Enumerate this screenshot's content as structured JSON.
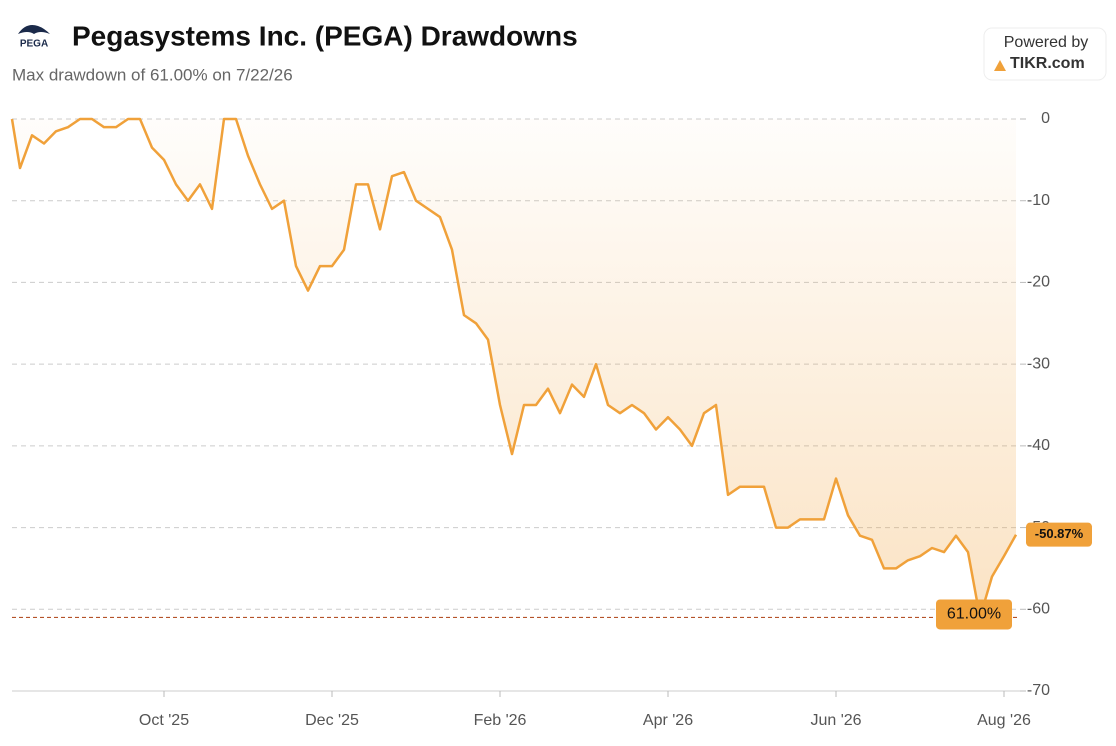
{
  "chart_data": {
    "type": "line",
    "title": "Pegasystems Inc. (PEGA) Drawdowns",
    "subtitle": "Max drawdown of 61.00% on 7/22/26",
    "logo_text": "PEGA",
    "powered_by": "Powered by",
    "brand": "TIKR.com",
    "categories": [
      null,
      null,
      null,
      null,
      null,
      null,
      null,
      null,
      null,
      null,
      null,
      null,
      null,
      "Oct '25",
      null,
      null,
      null,
      null,
      null,
      null,
      null,
      null,
      null,
      null,
      null,
      null,
      null,
      "Dec '25",
      null,
      null,
      null,
      null,
      null,
      null,
      null,
      null,
      null,
      null,
      null,
      null,
      null,
      "Feb '26",
      null,
      null,
      null,
      null,
      null,
      null,
      null,
      null,
      null,
      null,
      null,
      null,
      null,
      "Apr '26",
      null,
      null,
      null,
      null,
      null,
      null,
      null,
      null,
      null,
      null,
      null,
      null,
      null,
      "Jun '26",
      null,
      null,
      null,
      null,
      null,
      null,
      null,
      null,
      null,
      null,
      null,
      null,
      null,
      "Aug '26",
      null
    ],
    "values": [
      0,
      -6,
      -2,
      -3,
      -1.5,
      -1,
      0,
      0,
      -1,
      -1,
      0,
      0,
      -3.5,
      -5,
      -8,
      -10,
      -8,
      -11,
      0,
      0,
      -4.5,
      -8,
      -11,
      -10,
      -18,
      -21,
      -18,
      -18,
      -16,
      -8,
      -8,
      -13.5,
      -7,
      -6.5,
      -10,
      -11,
      -12,
      -16,
      -24,
      -25,
      -27,
      -35,
      -41,
      -35,
      -35,
      -33,
      -36,
      -32.5,
      -34,
      -30,
      -35,
      -36,
      -35,
      -36,
      -38,
      -36.5,
      -38,
      -40,
      -36,
      -35,
      -46,
      -45,
      -45,
      -45,
      -50,
      -50,
      -49,
      -49,
      -49,
      -44,
      -48.5,
      -51,
      -51.5,
      -55,
      -55,
      -54,
      -53.5,
      -52.5,
      -53,
      -51,
      -53,
      -61,
      -56,
      -53.5,
      -50.87
    ],
    "end_label": "-50.87%",
    "min_label": {
      "value": -61,
      "label": "61.00%"
    },
    "color": "#f0a13a",
    "ylim": [
      -70,
      0
    ],
    "yticks": [
      0,
      -10,
      -20,
      -30,
      -40,
      -50,
      -60,
      -70
    ],
    "grid": true
  }
}
